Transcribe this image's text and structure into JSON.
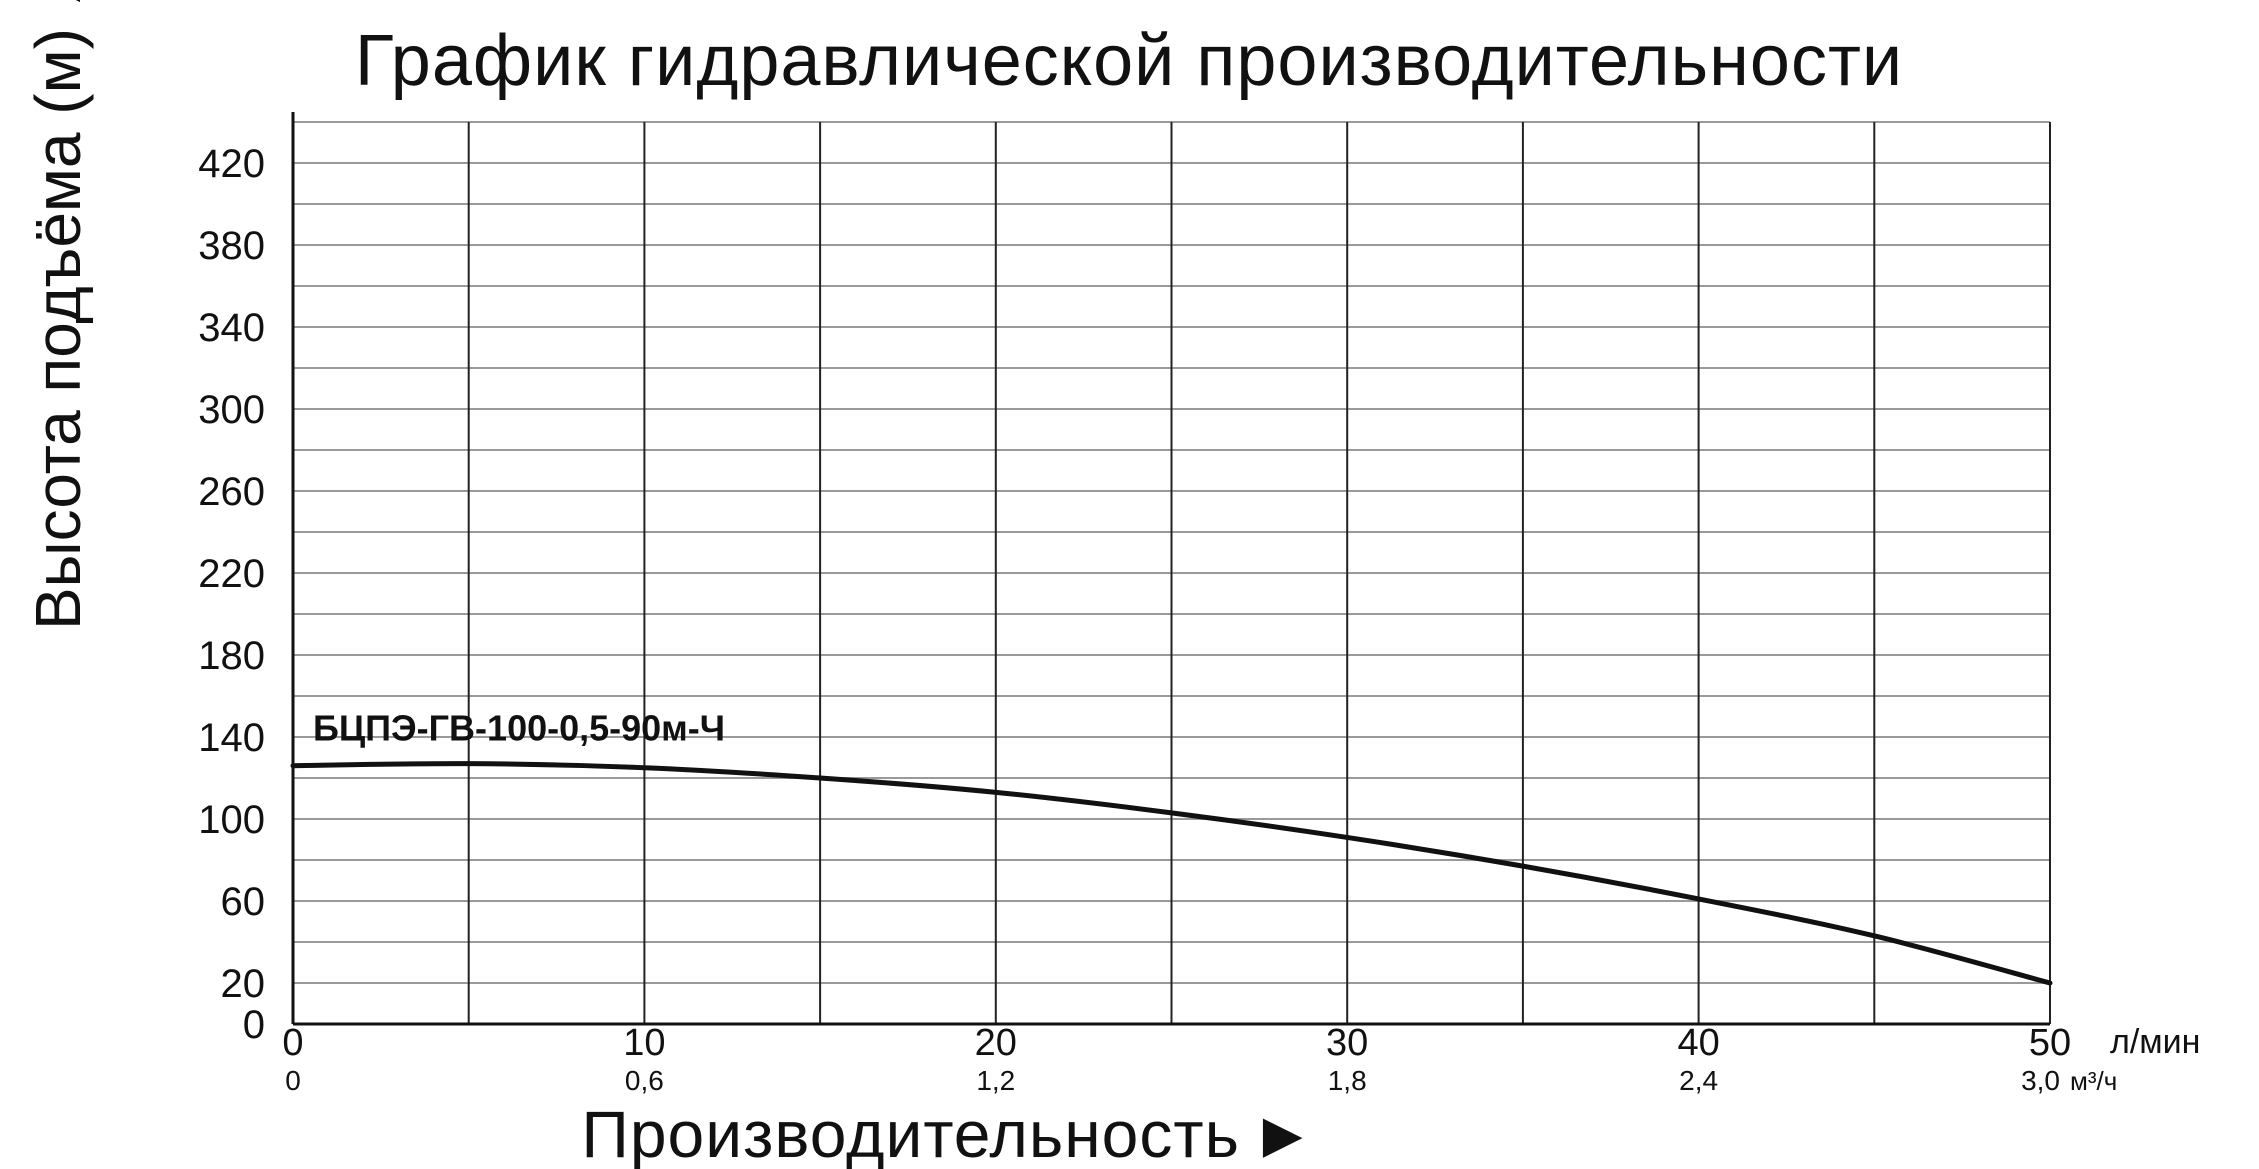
{
  "chart_data": {
    "type": "line",
    "title": "График гидравлической производительности",
    "ylabel": "Высота подъёма (м)",
    "xlabel": "Производительность",
    "x_unit": "л/мин",
    "x2_unit": "м³/ч",
    "xlim": [
      0,
      50
    ],
    "ylim": [
      0,
      440
    ],
    "yticks": [
      0,
      20,
      60,
      100,
      140,
      180,
      220,
      260,
      300,
      340,
      380,
      420
    ],
    "ytick_labels": [
      "0",
      "20",
      "60",
      "100",
      "140",
      "180",
      "220",
      "260",
      "300",
      "340",
      "380",
      "420"
    ],
    "xticks": [
      0,
      10,
      20,
      30,
      40,
      50
    ],
    "xtick_labels": [
      "0",
      "10",
      "20",
      "30",
      "40",
      "50"
    ],
    "x2ticks": [
      0,
      10,
      20,
      30,
      40,
      50
    ],
    "x2tick_labels": [
      "0",
      "0,6",
      "1,2",
      "1,8",
      "2,4",
      "3,0"
    ],
    "x_gridlines": [
      5,
      10,
      15,
      20,
      25,
      30,
      35,
      40,
      45,
      50
    ],
    "y_gridlines": [
      20,
      40,
      60,
      80,
      100,
      120,
      140,
      160,
      180,
      200,
      220,
      240,
      260,
      280,
      300,
      320,
      340,
      360,
      380,
      400,
      420,
      440
    ],
    "grid": true,
    "series": [
      {
        "name": "БЦПЭ-ГВ-100-0,5-90м-Ч",
        "x": [
          0,
          5,
          10,
          15,
          20,
          25,
          30,
          35,
          40,
          45,
          50
        ],
        "y": [
          126,
          127,
          125,
          120,
          113,
          103,
          91,
          77,
          61,
          43,
          20
        ]
      }
    ],
    "arrow_glyph": "►",
    "y_arrow_glyph": "▲",
    "colors": {
      "line": "#111111",
      "grid_horizontal": "#9a9a9a",
      "grid_vertical": "#222222",
      "background": "#ffffff"
    }
  }
}
